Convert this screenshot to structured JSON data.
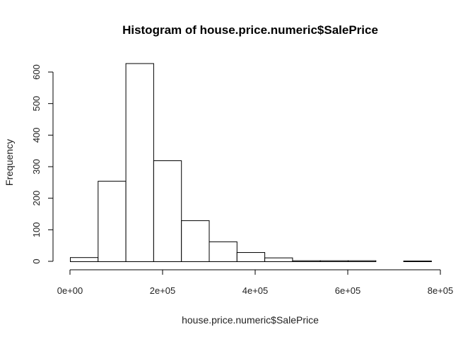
{
  "chart_data": {
    "type": "bar",
    "title": "Histogram of house.price.numeric$SalePrice",
    "xlabel": "house.price.numeric$SalePrice",
    "ylabel": "Frequency",
    "bin_edges": [
      0,
      60000,
      120000,
      180000,
      240000,
      300000,
      360000,
      420000,
      480000,
      540000,
      600000,
      660000,
      720000,
      780000
    ],
    "values": [
      13,
      255,
      628,
      320,
      130,
      63,
      29,
      12,
      3,
      3,
      3,
      0,
      2
    ],
    "xlim": [
      0,
      800000
    ],
    "ylim": [
      0,
      640
    ],
    "x_ticks": [
      0,
      200000,
      400000,
      600000,
      800000
    ],
    "x_tick_labels": [
      "0e+00",
      "2e+05",
      "4e+05",
      "6e+05",
      "8e+05"
    ],
    "y_ticks": [
      0,
      100,
      200,
      300,
      400,
      500,
      600
    ],
    "y_tick_labels": [
      "0",
      "100",
      "200",
      "300",
      "400",
      "500",
      "600"
    ],
    "grid": false,
    "bar_fill": "#ffffff",
    "bar_stroke": "#000000"
  }
}
